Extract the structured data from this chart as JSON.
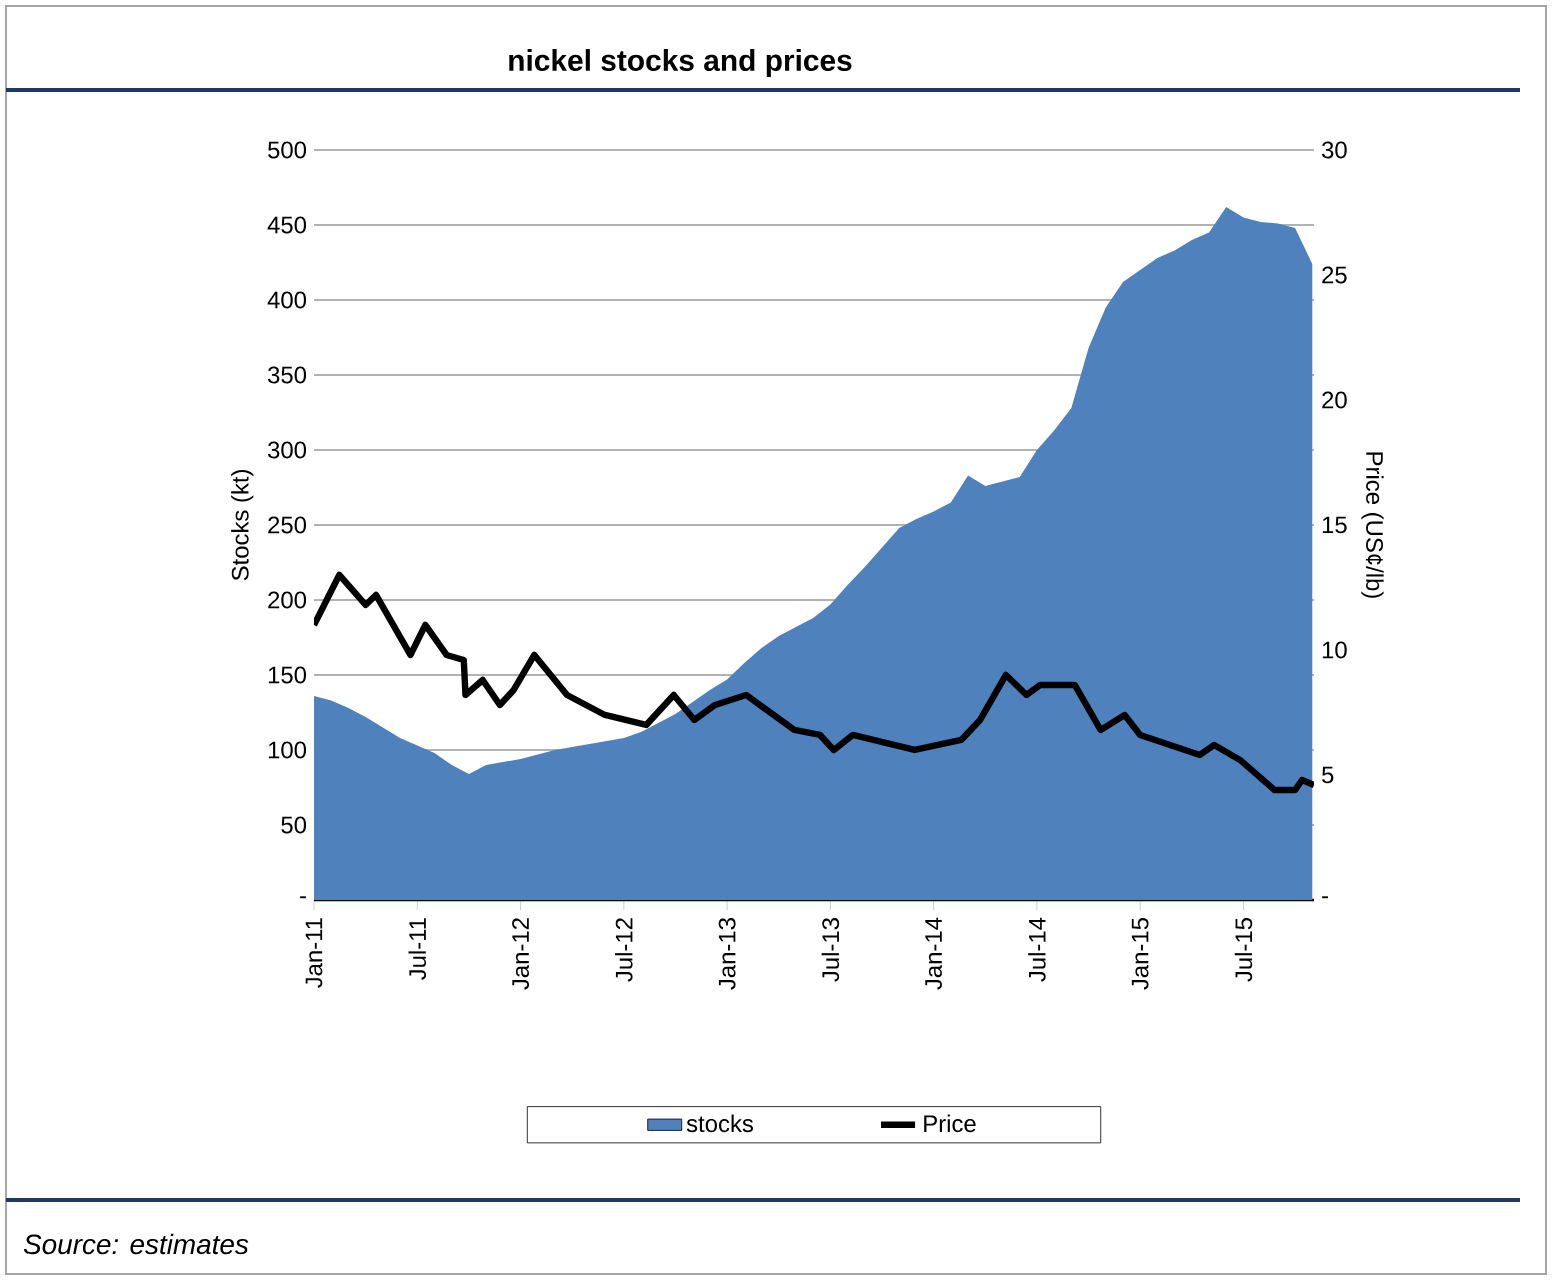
{
  "chart_data": {
    "type": "area",
    "title": "nickel stocks and prices",
    "ylabel": "Stocks (kt)",
    "y2label": "Price (US¢/lb)",
    "annotations": [
      "Source: estimates"
    ],
    "xlim": [
      "2011-01",
      "2015-11-04"
    ],
    "xticks": [
      {
        "value": "2011-01",
        "label": "Jan-11"
      },
      {
        "value": "2011-07",
        "label": "Jul-11"
      },
      {
        "value": "2012-01",
        "label": "Jan-12"
      },
      {
        "value": "2012-07",
        "label": "Jul-12"
      },
      {
        "value": "2013-01",
        "label": "Jan-13"
      },
      {
        "value": "2013-07",
        "label": "Jul-13"
      },
      {
        "value": "2014-01",
        "label": "Jan-14"
      },
      {
        "value": "2014-07",
        "label": "Jul-14"
      },
      {
        "value": "2015-01",
        "label": "Jan-15"
      },
      {
        "value": "2015-07",
        "label": "Jul-15"
      }
    ],
    "ylim": [
      0,
      500
    ],
    "yticks": [
      {
        "value": 0,
        "label": "-"
      },
      50,
      100,
      150,
      200,
      250,
      300,
      350,
      400,
      450,
      500
    ],
    "y2lim": [
      0,
      30
    ],
    "y2ticks": [
      {
        "value": 0,
        "label": "-"
      },
      5,
      10,
      15,
      20,
      25,
      30
    ],
    "grid": "y",
    "legend": "bottom",
    "series": [
      {
        "name": "stocks",
        "color": "#4f81bd",
        "x": [
          "2011-01",
          "2011-02",
          "2011-03",
          "2011-04",
          "2011-05",
          "2011-06",
          "2011-07",
          "2011-08",
          "2011-09",
          "2011-10",
          "2011-11",
          "2011-12",
          "2012-01",
          "2012-02",
          "2012-03",
          "2012-04",
          "2012-05",
          "2012-06",
          "2012-07",
          "2012-08",
          "2012-09",
          "2012-10",
          "2012-11",
          "2012-12",
          "2013-01",
          "2013-02",
          "2013-03",
          "2013-04",
          "2013-05",
          "2013-06",
          "2013-07",
          "2013-08",
          "2013-09",
          "2013-10",
          "2013-11",
          "2013-12",
          "2014-01",
          "2014-02",
          "2014-03",
          "2014-04",
          "2014-05",
          "2014-06",
          "2014-07",
          "2014-08",
          "2014-09",
          "2014-10",
          "2014-11",
          "2014-12",
          "2015-01",
          "2015-02",
          "2015-03",
          "2015-04",
          "2015-05",
          "2015-06",
          "2015-07",
          "2015-08",
          "2015-09",
          "2015-10",
          "2015-11"
        ],
        "values": [
          136,
          133,
          128,
          122,
          115,
          108,
          103,
          98,
          90,
          84,
          90,
          92,
          94,
          97,
          100,
          102,
          104,
          106,
          108,
          112,
          118,
          124,
          132,
          140,
          147,
          158,
          168,
          176,
          182,
          188,
          197,
          210,
          222,
          235,
          248,
          254,
          259,
          265,
          283,
          276,
          279,
          282,
          300,
          313,
          328,
          368,
          395,
          412,
          420,
          428,
          433,
          440,
          445,
          462,
          455,
          452,
          451,
          448,
          424
        ]
      },
      {
        "name": "Price",
        "color": "#000000",
        "type": "line",
        "axis": "y2",
        "x": [
          "2011-01-01",
          "2011-02-15",
          "2011-04-01",
          "2011-04-19",
          "2011-06-19",
          "2011-07-15",
          "2011-08-22",
          "2011-09-22",
          "2011-09-25",
          "2011-10-25",
          "2011-11-25",
          "2011-12-19",
          "2012-01-25",
          "2012-03-22",
          "2012-05-28",
          "2012-08-10",
          "2012-09-28",
          "2012-11-04",
          "2012-12-10",
          "2013-02-04",
          "2013-03-10",
          "2013-04-28",
          "2013-06-13",
          "2013-07-07",
          "2013-08-10",
          "2013-11-28",
          "2014-02-19",
          "2014-03-22",
          "2014-05-07",
          "2014-06-13",
          "2014-07-07",
          "2014-09-07",
          "2014-10-22",
          "2014-12-04",
          "2015-01-01",
          "2015-04-15",
          "2015-05-10",
          "2015-06-25",
          "2015-08-25",
          "2015-10-01",
          "2015-10-13",
          "2015-11-04"
        ],
        "values": [
          11.0,
          13.0,
          11.8,
          12.2,
          9.8,
          11.0,
          9.8,
          9.6,
          8.2,
          8.8,
          7.8,
          8.4,
          9.8,
          8.2,
          7.4,
          7.0,
          8.2,
          7.2,
          7.8,
          8.2,
          7.6,
          6.8,
          6.6,
          6.0,
          6.6,
          6.0,
          6.4,
          7.2,
          9.0,
          8.2,
          8.6,
          8.6,
          6.8,
          7.4,
          6.6,
          5.8,
          6.2,
          5.6,
          4.4,
          4.4,
          4.8,
          4.6
        ]
      }
    ]
  }
}
